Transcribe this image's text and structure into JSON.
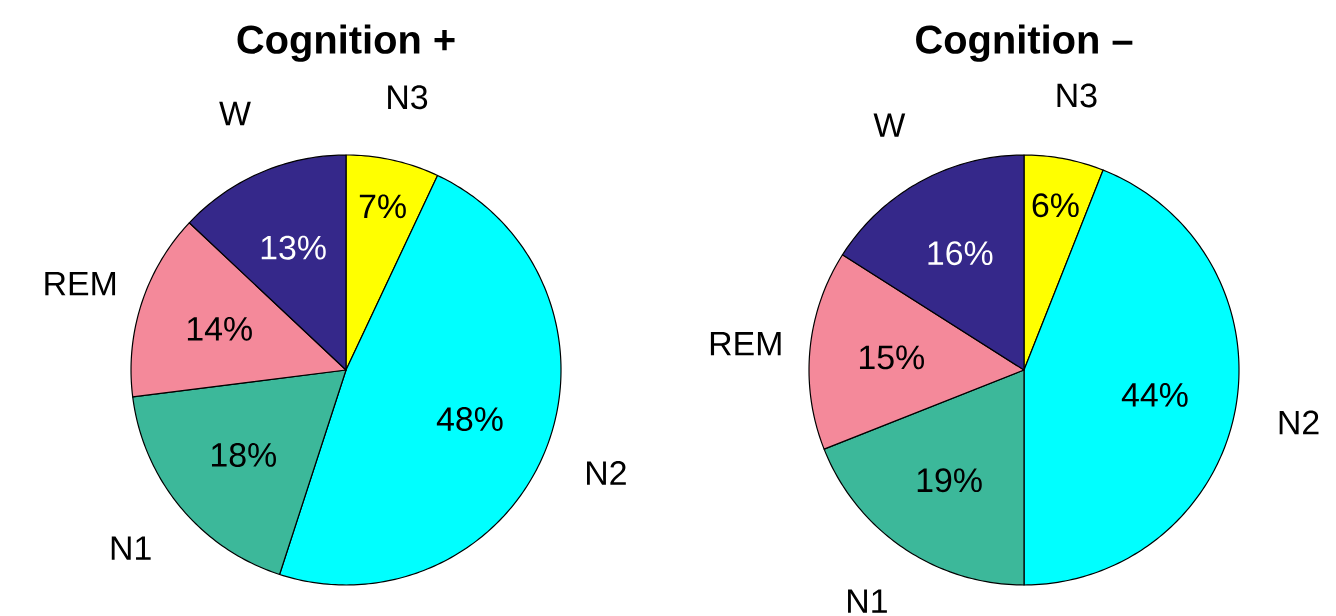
{
  "chart_data": [
    {
      "type": "pie",
      "title": "Cognition +",
      "categories": [
        "N3",
        "N2",
        "N1",
        "REM",
        "W"
      ],
      "values": [
        7,
        48,
        18,
        14,
        13
      ],
      "value_labels": [
        "7%",
        "48%",
        "18%",
        "14%",
        "13%"
      ],
      "colors": [
        "#ffff00",
        "#00ffff",
        "#3cb89a",
        "#f4899a",
        "#35288a"
      ]
    },
    {
      "type": "pie",
      "title": "Cognition –",
      "categories": [
        "N3",
        "N2",
        "N1",
        "REM",
        "W"
      ],
      "values": [
        6,
        44,
        19,
        15,
        16
      ],
      "value_labels": [
        "6%",
        "44%",
        "19%",
        "15%",
        "16%"
      ],
      "colors": [
        "#ffff00",
        "#00ffff",
        "#3cb89a",
        "#f4899a",
        "#35288a"
      ]
    }
  ]
}
